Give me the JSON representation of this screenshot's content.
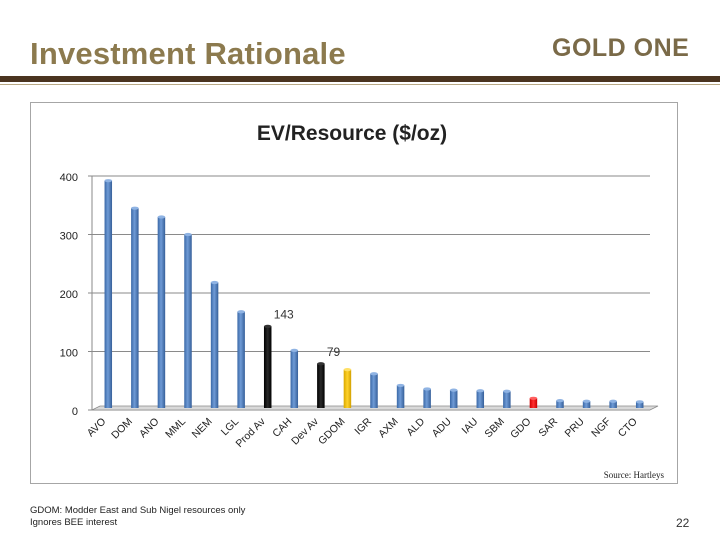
{
  "slide": {
    "title": "Investment Rationale",
    "logo_text": "GOLD ONE",
    "footnote_line1": "GDOM: Modder East and Sub Nigel resources only",
    "footnote_line2": "Ignores BEE interest",
    "page_number": "22"
  },
  "colors": {
    "title": "#8c7a4e",
    "rule": "#4a3420",
    "bar_default": "#4f81bd",
    "bar_black": "#000000",
    "bar_gold": "#f2c100",
    "bar_red": "#ff0000"
  },
  "chart_data": {
    "type": "bar",
    "title": "EV/Resource ($/oz)",
    "xlabel": "",
    "ylabel": "",
    "ylim": [
      0,
      400
    ],
    "yticks": [
      0,
      100,
      200,
      300,
      400
    ],
    "grid": true,
    "source": "Source: Hartleys",
    "categories": [
      "AVO",
      "DOM",
      "ANO",
      "MML",
      "NEM",
      "LGL",
      "Prod Av",
      "CAH",
      "Dev Av",
      "GDOM",
      "IGR",
      "AXM",
      "ALD",
      "ADU",
      "IAU",
      "SBM",
      "GDO",
      "SAR",
      "PRU",
      "NGF",
      "CTO"
    ],
    "values": [
      392,
      345,
      330,
      300,
      218,
      168,
      143,
      102,
      79,
      69,
      62,
      42,
      36,
      34,
      33,
      32,
      20,
      16,
      15,
      15,
      14
    ],
    "bar_colors": [
      "default",
      "default",
      "default",
      "default",
      "default",
      "default",
      "black",
      "default",
      "black",
      "gold",
      "default",
      "default",
      "default",
      "default",
      "default",
      "default",
      "red",
      "default",
      "default",
      "default",
      "default"
    ],
    "data_labels": [
      {
        "category": "Prod Av",
        "label": "143"
      },
      {
        "category": "Dev Av",
        "label": "79"
      }
    ]
  }
}
